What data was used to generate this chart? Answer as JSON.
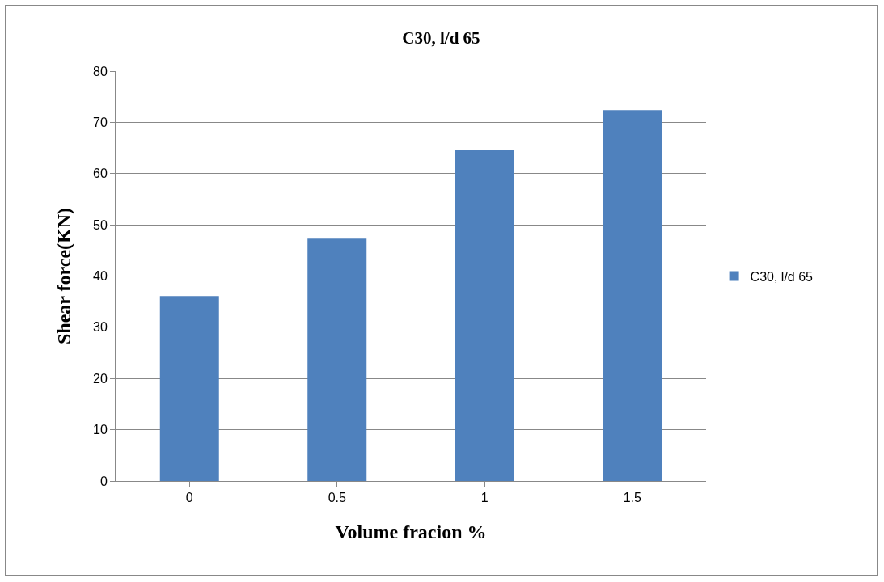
{
  "chart_data": {
    "type": "bar",
    "title": "C30, l/d 65",
    "xlabel": "Volume fracion %",
    "ylabel": "Shear force(KN)",
    "categories": [
      "0",
      "0.5",
      "1",
      "1.5"
    ],
    "series": [
      {
        "name": "C30, l/d 65",
        "color": "#4f81bd",
        "values": [
          36.1,
          47.3,
          64.6,
          72.4
        ]
      }
    ],
    "ylim": [
      0,
      80
    ],
    "yticks": [
      0,
      10,
      20,
      30,
      40,
      50,
      60,
      70,
      80
    ],
    "grid": "y",
    "legend": "right"
  }
}
